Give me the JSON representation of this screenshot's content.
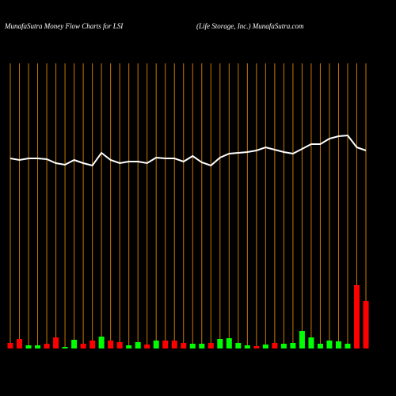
{
  "chart_data": {
    "type": "money-flow",
    "title": "MunafaSutra  Money Flow  Charts for LSI",
    "subtitle": "(Life   Storage,  Inc.) MunafaSutra.com",
    "categories": [
      null,
      null,
      null,
      null,
      null,
      null,
      null,
      null,
      null,
      null,
      null,
      null,
      null,
      null,
      null,
      null,
      null,
      null,
      null,
      null,
      null,
      null,
      null,
      null,
      null,
      null,
      null,
      null,
      null,
      null,
      null,
      null,
      null,
      null,
      null,
      null,
      null,
      null,
      null,
      null
    ],
    "ylim": [
      0,
      440
    ],
    "line": {
      "color": "#ffffff",
      "values": [
        240,
        238,
        240,
        240,
        239,
        234,
        232,
        238,
        234,
        231,
        247,
        238,
        234,
        236,
        236,
        234,
        241,
        240,
        240,
        236,
        243,
        235,
        231,
        241,
        246,
        247,
        248,
        250,
        254,
        251,
        248,
        246,
        252,
        258,
        258,
        265,
        268,
        269,
        254,
        250
      ]
    },
    "bars": {
      "values": [
        7,
        12,
        4,
        4,
        6,
        14,
        2,
        11,
        6,
        10,
        15,
        10,
        8,
        4,
        8,
        5,
        10,
        10,
        10,
        7,
        6,
        6,
        7,
        12,
        13,
        7,
        4,
        3,
        5,
        7,
        6,
        7,
        22,
        14,
        6,
        10,
        9,
        6,
        80,
        60
      ],
      "colors": [
        "#ff0000",
        "#ff0000",
        "#00ff00",
        "#00ff00",
        "#ff0000",
        "#ff0000",
        "#00ff00",
        "#00ff00",
        "#ff0000",
        "#ff0000",
        "#00ff00",
        "#ff0000",
        "#ff0000",
        "#00ff00",
        "#00ff00",
        "#ff0000",
        "#00ff00",
        "#ff0000",
        "#ff0000",
        "#ff0000",
        "#00ff00",
        "#00ff00",
        "#ff0000",
        "#00ff00",
        "#00ff00",
        "#00ff00",
        "#00ff00",
        "#ff0000",
        "#00ff00",
        "#ff0000",
        "#00ff00",
        "#00ff00",
        "#00ff00",
        "#00ff00",
        "#00ff00",
        "#00ff00",
        "#00ff00",
        "#00ff00",
        "#ff0000",
        "#ff0000"
      ]
    },
    "grid_color": "#c87800"
  }
}
